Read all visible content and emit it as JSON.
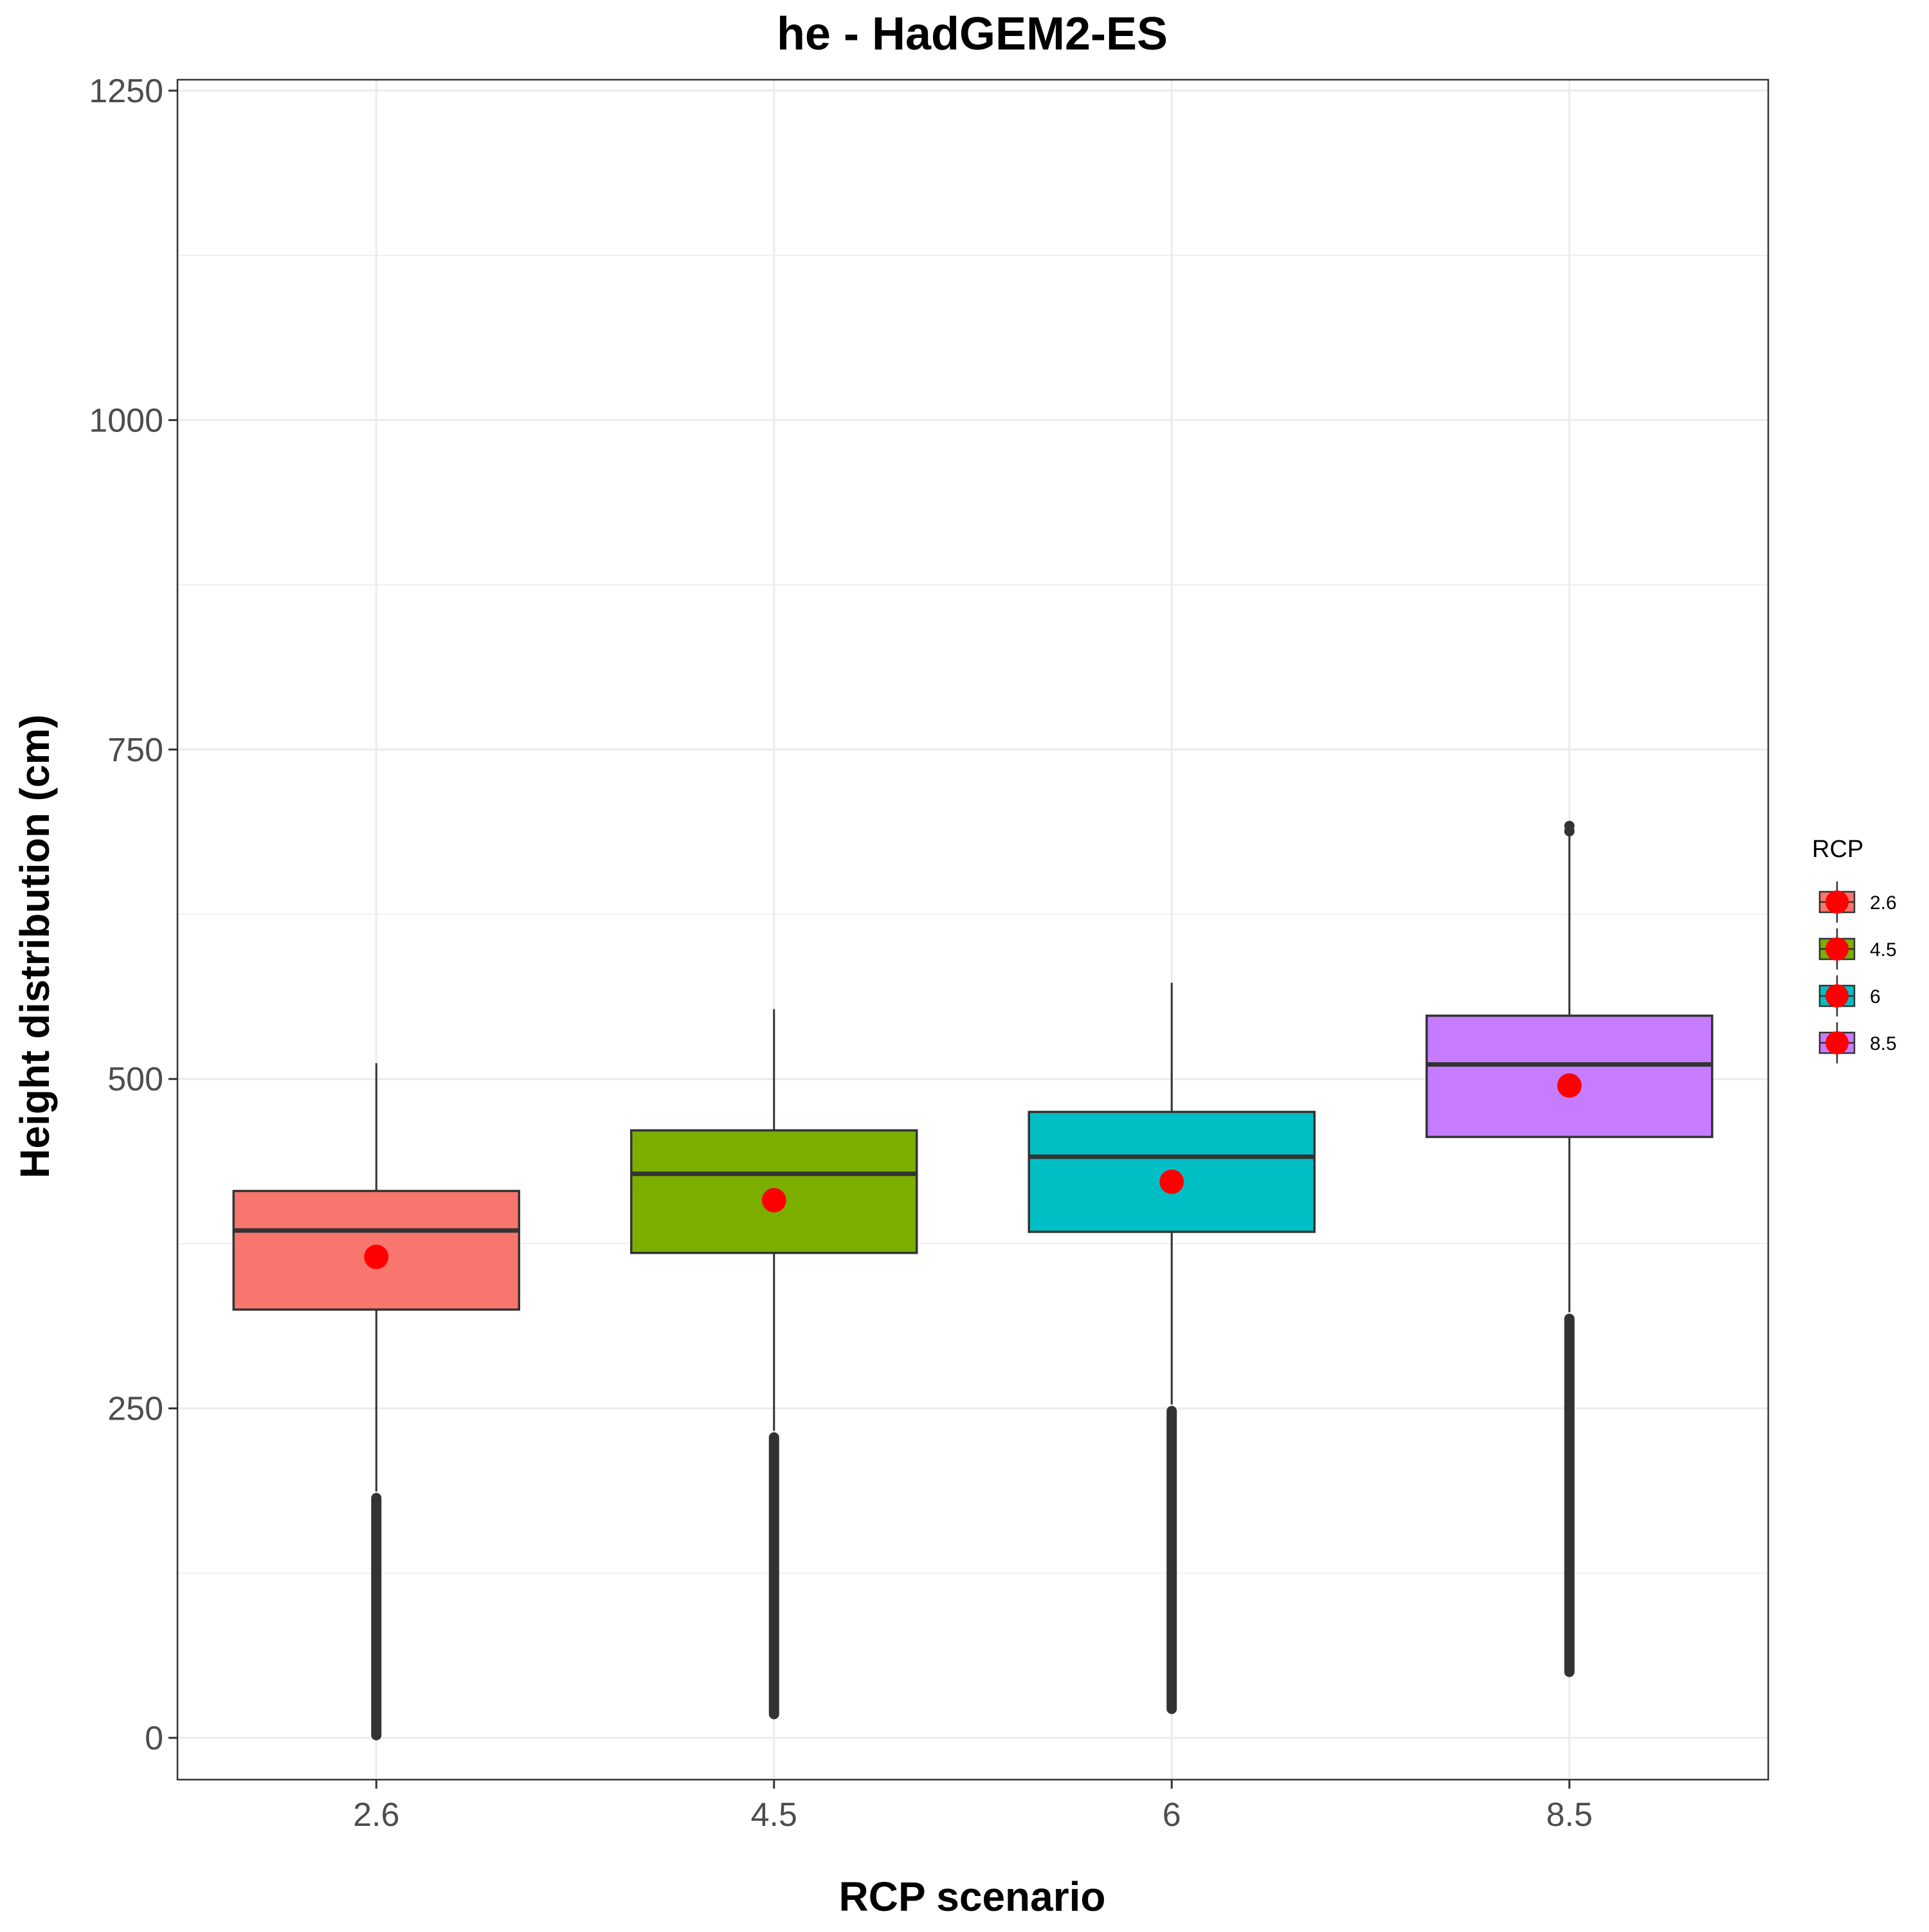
{
  "chart_data": {
    "type": "box",
    "title": "he - HadGEM2-ES",
    "xlabel": "RCP scenario",
    "ylabel": "Height distribution (cm)",
    "categories": [
      "2.6",
      "4.5",
      "6",
      "8.5"
    ],
    "ylim": [
      -60,
      1260
    ],
    "yticks": [
      0,
      250,
      500,
      750,
      1000,
      1250
    ],
    "grid": true,
    "legend": {
      "title": "RCP",
      "placement": "right",
      "entries": [
        "2.6",
        "4.5",
        "6",
        "8.5"
      ]
    },
    "series": [
      {
        "category": "2.6",
        "color": "#F8766D",
        "whisker_low": 325,
        "q1": 325,
        "median": 385,
        "q3": 415,
        "whisker_high": 512,
        "mean": 365,
        "outlier_range": [
          2,
          182
        ]
      },
      {
        "category": "4.5",
        "color": "#7CAE00",
        "whisker_low": 368,
        "q1": 368,
        "median": 428,
        "q3": 461,
        "whisker_high": 553,
        "mean": 408,
        "outlier_range": [
          18,
          228
        ]
      },
      {
        "category": "6",
        "color": "#00BFC4",
        "whisker_low": 384,
        "q1": 384,
        "median": 441,
        "q3": 475,
        "whisker_high": 573,
        "mean": 422,
        "outlier_range": [
          22,
          248
        ]
      },
      {
        "category": "8.5",
        "color": "#C77CFF",
        "whisker_low": 456,
        "q1": 456,
        "median": 511,
        "q3": 548,
        "whisker_high": 690,
        "mean": 495,
        "outlier_range": [
          50,
          318
        ]
      }
    ],
    "mean_marker_color": "#FF0000"
  }
}
